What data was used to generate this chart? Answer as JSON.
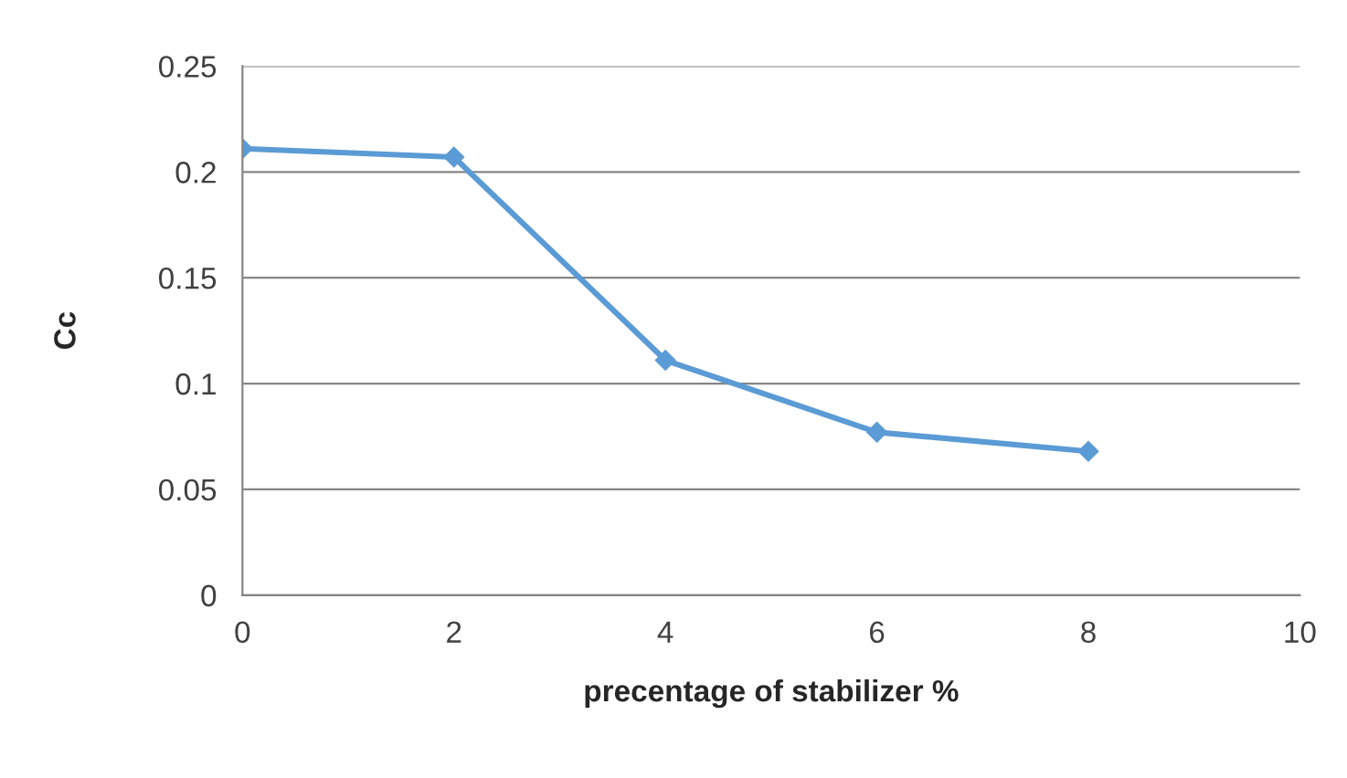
{
  "chart_data": {
    "type": "line",
    "xlabel": "precentage of stabilizer %",
    "ylabel": "Cc",
    "x": [
      0,
      2,
      4,
      6,
      8
    ],
    "series": [
      {
        "color": "#5b9bd5",
        "values": [
          0.211,
          0.207,
          0.111,
          0.077,
          0.068
        ]
      }
    ],
    "xlim": [
      0,
      10
    ],
    "xticks": [
      0,
      2,
      4,
      6,
      8,
      10
    ],
    "ylim": [
      0,
      0.25
    ],
    "yticks": [
      0,
      0.05,
      0.1,
      0.15,
      0.2,
      0.25
    ],
    "grid": "y",
    "marker": "diamond",
    "line_style": "solid",
    "legend": false
  }
}
